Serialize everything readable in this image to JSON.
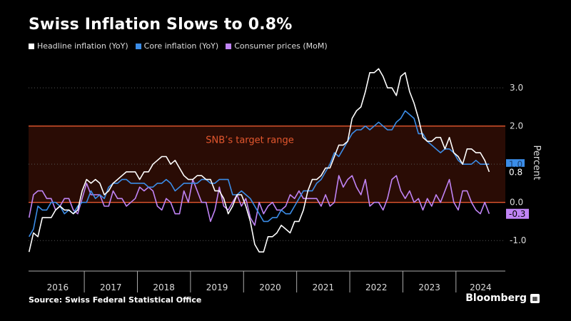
{
  "header": {
    "title": "Swiss Inflation Slows to 0.8%"
  },
  "footer": {
    "source": "Source:  Swiss Federal Statistical Office",
    "brand": "Bloomberg"
  },
  "colors": {
    "headline": "#ffffff",
    "core": "#3b8de8",
    "mom": "#c084f5",
    "band_line": "#e4572e",
    "band_fill": "#2a0c05",
    "band_text": "#e4572e",
    "grid": "#555555",
    "axis_text": "#dddddd"
  },
  "chart_data": {
    "type": "line",
    "title": "Swiss Inflation Slows to 0.8%",
    "ylabel": "Percent",
    "ylim": [
      -1.8,
      3.9
    ],
    "xlim": [
      2015.95,
      2024.93
    ],
    "yticks": [
      {
        "v": 3.0,
        "label": "3.0"
      },
      {
        "v": 2.0,
        "label": "2.0"
      },
      {
        "v": 1.0,
        "label": "1.0"
      },
      {
        "v": 0.0,
        "label": "0.0"
      },
      {
        "v": -1.0,
        "label": "-1.0"
      }
    ],
    "years": [
      "2016",
      "2017",
      "2018",
      "2019",
      "2020",
      "2021",
      "2022",
      "2023",
      "2024"
    ],
    "band": {
      "from": 0.0,
      "to": 2.0,
      "label": "SNB’s target range"
    },
    "end_labels": [
      {
        "series": "core",
        "value": 1.0,
        "label": "1.0"
      },
      {
        "series": "headline",
        "value": 0.8,
        "label": "0.8"
      },
      {
        "series": "mom",
        "value": -0.3,
        "label": "-0.3"
      }
    ],
    "series": [
      {
        "name": "Headline inflation (YoY)",
        "key": "headline",
        "values": [
          -1.3,
          -0.8,
          -0.9,
          -0.4,
          -0.4,
          -0.4,
          -0.2,
          -0.1,
          -0.2,
          -0.2,
          -0.3,
          -0.2,
          0.3,
          0.6,
          0.5,
          0.6,
          0.5,
          0.2,
          0.3,
          0.5,
          0.6,
          0.7,
          0.8,
          0.8,
          0.8,
          0.6,
          0.8,
          0.8,
          1.0,
          1.1,
          1.2,
          1.2,
          1.0,
          1.1,
          0.9,
          0.7,
          0.6,
          0.6,
          0.7,
          0.7,
          0.6,
          0.6,
          0.3,
          0.3,
          0.1,
          -0.3,
          -0.1,
          0.2,
          0.2,
          -0.1,
          -0.5,
          -1.1,
          -1.3,
          -1.3,
          -0.9,
          -0.9,
          -0.8,
          -0.6,
          -0.7,
          -0.8,
          -0.5,
          -0.5,
          -0.2,
          0.3,
          0.6,
          0.6,
          0.7,
          0.9,
          0.9,
          1.2,
          1.5,
          1.5,
          1.6,
          2.2,
          2.4,
          2.5,
          2.9,
          3.4,
          3.4,
          3.5,
          3.3,
          3.0,
          3.0,
          2.8,
          3.3,
          3.4,
          2.9,
          2.6,
          2.2,
          1.7,
          1.6,
          1.6,
          1.7,
          1.7,
          1.4,
          1.7,
          1.3,
          1.2,
          1.0,
          1.4,
          1.4,
          1.3,
          1.3,
          1.1,
          0.8
        ]
      },
      {
        "name": "Core inflation (YoY)",
        "key": "core",
        "values": [
          -0.9,
          -0.7,
          -0.1,
          -0.2,
          -0.2,
          0.0,
          0.0,
          -0.1,
          -0.3,
          -0.2,
          -0.3,
          -0.1,
          0.0,
          0.0,
          0.3,
          0.1,
          0.2,
          0.1,
          0.4,
          0.5,
          0.5,
          0.6,
          0.6,
          0.5,
          0.5,
          0.5,
          0.5,
          0.4,
          0.4,
          0.5,
          0.5,
          0.6,
          0.5,
          0.3,
          0.4,
          0.5,
          0.5,
          0.5,
          0.5,
          0.6,
          0.6,
          0.5,
          0.5,
          0.6,
          0.6,
          0.6,
          0.2,
          0.2,
          0.3,
          0.2,
          0.1,
          -0.1,
          -0.3,
          -0.5,
          -0.5,
          -0.4,
          -0.4,
          -0.2,
          -0.3,
          -0.3,
          -0.1,
          0.1,
          0.3,
          0.3,
          0.3,
          0.5,
          0.6,
          0.8,
          1.0,
          1.3,
          1.2,
          1.4,
          1.6,
          1.8,
          1.9,
          1.9,
          2.0,
          1.9,
          2.0,
          2.1,
          2.0,
          1.9,
          1.9,
          2.1,
          2.2,
          2.4,
          2.3,
          2.2,
          1.8,
          1.8,
          1.6,
          1.5,
          1.4,
          1.3,
          1.4,
          1.4,
          1.3,
          1.1,
          1.0,
          1.0,
          1.0,
          1.1,
          1.0,
          1.0,
          1.0
        ]
      },
      {
        "name": "Consumer prices (MoM)",
        "key": "mom",
        "values": [
          -0.4,
          0.2,
          0.3,
          0.3,
          0.1,
          0.1,
          -0.2,
          -0.1,
          0.1,
          0.1,
          -0.2,
          -0.3,
          0.1,
          0.5,
          0.2,
          0.2,
          0.2,
          -0.1,
          -0.1,
          0.3,
          0.1,
          0.1,
          -0.1,
          0.0,
          0.1,
          0.4,
          0.3,
          0.4,
          0.3,
          -0.1,
          -0.2,
          0.1,
          0.0,
          -0.3,
          -0.3,
          0.3,
          0.0,
          0.6,
          0.3,
          0.0,
          0.0,
          -0.5,
          -0.2,
          0.4,
          -0.1,
          -0.2,
          0.0,
          0.2,
          -0.1,
          0.1,
          -0.4,
          -0.6,
          0.0,
          -0.3,
          -0.1,
          0.0,
          -0.2,
          -0.2,
          -0.1,
          0.2,
          0.1,
          0.3,
          0.1,
          0.1,
          0.1,
          0.1,
          -0.1,
          0.2,
          -0.1,
          0.0,
          0.7,
          0.4,
          0.6,
          0.7,
          0.4,
          0.2,
          0.6,
          -0.1,
          0.0,
          0.0,
          -0.2,
          0.1,
          0.6,
          0.7,
          0.3,
          0.1,
          0.3,
          0.0,
          0.1,
          -0.2,
          0.1,
          -0.1,
          0.2,
          0.0,
          0.3,
          0.6,
          0.0,
          -0.2,
          0.3,
          0.3,
          0.0,
          -0.2,
          -0.3,
          0.0,
          -0.3
        ]
      }
    ]
  }
}
